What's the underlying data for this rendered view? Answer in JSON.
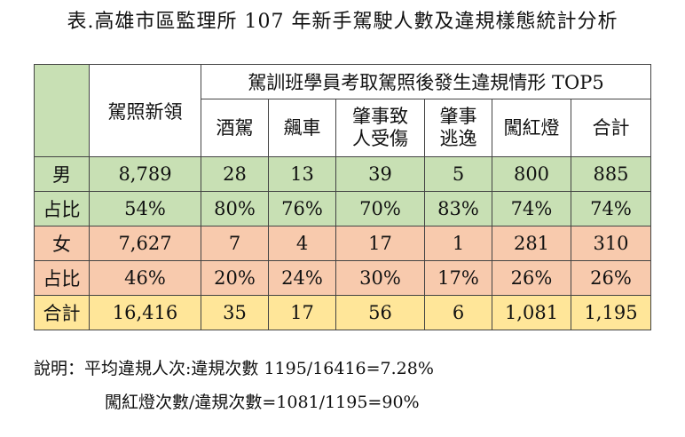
{
  "title": "表.高雄市區監理所 107 年新手駕駛人數及違規樣態統計分析",
  "table": {
    "header": {
      "new_license": "駕照新領",
      "group": "駕訓班學員考取駕照後發生違規情形 TOP5",
      "columns": [
        "酒駕",
        "飆車",
        "肇事致\n人受傷",
        "肇事\n逃逸",
        "闖紅燈",
        "合計"
      ]
    },
    "rows": [
      {
        "label": "男",
        "cells": [
          "8,789",
          "28",
          "13",
          "39",
          "5",
          "800",
          "885"
        ],
        "color": "#c8e0b4"
      },
      {
        "label": "占比",
        "cells": [
          "54%",
          "80%",
          "76%",
          "70%",
          "83%",
          "74%",
          "74%"
        ],
        "color": "#c8e0b4"
      },
      {
        "label": "女",
        "cells": [
          "7,627",
          "7",
          "4",
          "17",
          "1",
          "281",
          "310"
        ],
        "color": "#f8caad"
      },
      {
        "label": "占比",
        "cells": [
          "46%",
          "20%",
          "24%",
          "30%",
          "17%",
          "26%",
          "26%"
        ],
        "color": "#f8caad"
      },
      {
        "label": "合計",
        "cells": [
          "16,416",
          "35",
          "17",
          "56",
          "6",
          "1,081",
          "1,195"
        ],
        "color": "#ffe699"
      }
    ]
  },
  "notes": {
    "line1": "說明：平均違規人次:違規次數 1195/16416=7.28%",
    "line2": "闖紅燈次數/違規次數=1081/1195=90%"
  }
}
